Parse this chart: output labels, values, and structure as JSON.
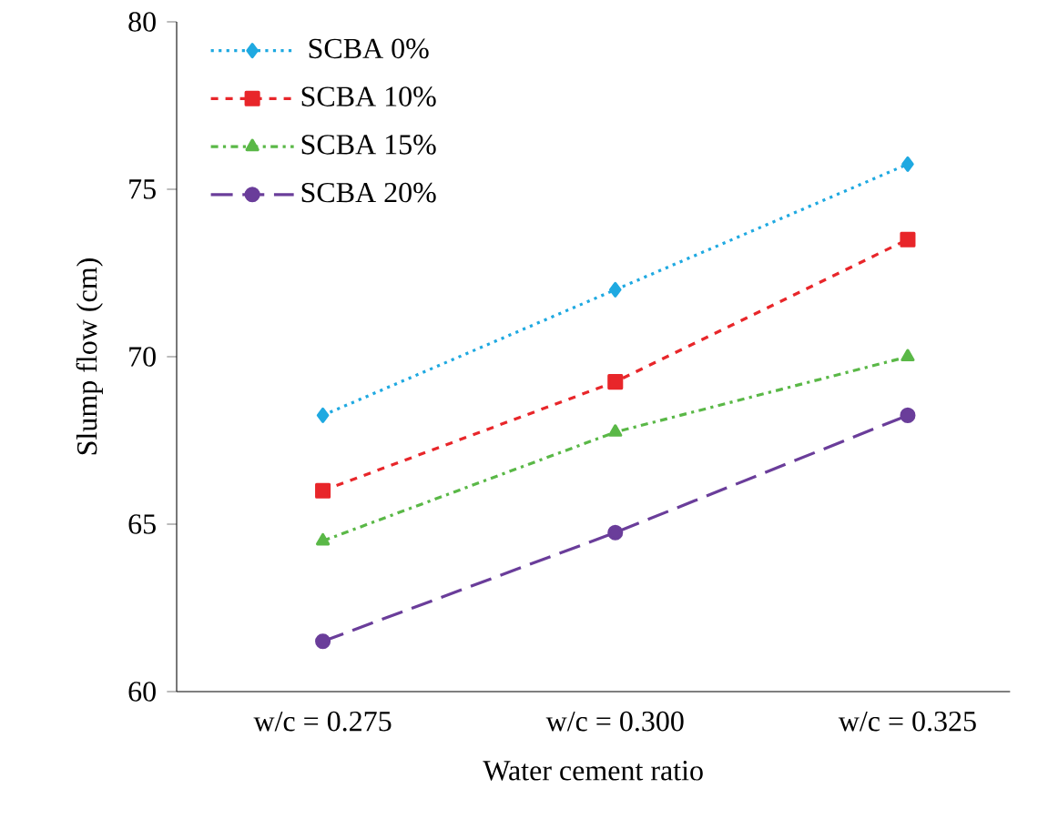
{
  "chart_data": {
    "type": "line",
    "xlabel": "Water cement ratio",
    "ylabel": "Slump flow (cm)",
    "categories": [
      "w/c = 0.275",
      "w/c = 0.300",
      "w/c = 0.325"
    ],
    "series": [
      {
        "name": "SCBA 0%",
        "color": "#1fa9e1",
        "values": [
          68.25,
          72,
          75.75
        ],
        "marker": "diamond",
        "line_style": "dotted"
      },
      {
        "name": "SCBA 10%",
        "color": "#e8262a",
        "values": [
          66,
          69.25,
          73.5
        ],
        "marker": "square",
        "line_style": "dashed"
      },
      {
        "name": "SCBA 15%",
        "color": "#5ab847",
        "values": [
          64.5,
          67.75,
          70
        ],
        "marker": "triangle",
        "line_style": "dashdot"
      },
      {
        "name": "SCBA 20%",
        "color": "#6a3d9a",
        "values": [
          61.5,
          64.75,
          68.25
        ],
        "marker": "circle",
        "line_style": "longdash"
      }
    ],
    "ylim": [
      60,
      80
    ],
    "yticks": [
      60,
      65,
      70,
      75,
      80
    ],
    "grid": false,
    "legend": "top left"
  }
}
